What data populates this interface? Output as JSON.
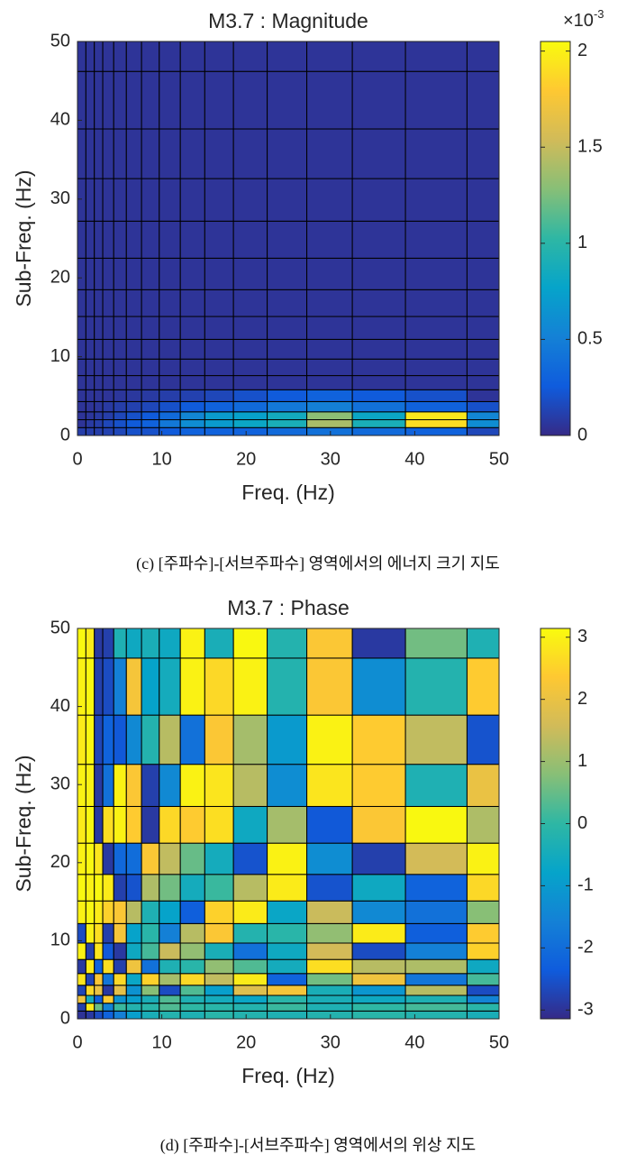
{
  "chart_data": [
    {
      "type": "heatmap",
      "title": "M3.7 : Magnitude",
      "xlabel": "Freq. (Hz)",
      "ylabel": "Sub-Freq. (Hz)",
      "caption": "(c) [주파수]-[서브주파수] 영역에서의 에너지 크기 지도",
      "xlim": [
        0,
        50
      ],
      "ylim": [
        0,
        50
      ],
      "xticks": [
        0,
        10,
        20,
        30,
        40,
        50
      ],
      "yticks": [
        0,
        10,
        20,
        30,
        40,
        50
      ],
      "xbins": [
        0,
        1,
        2,
        3,
        4.3,
        5.8,
        7.6,
        9.7,
        12.2,
        15.1,
        18.5,
        22.5,
        27.2,
        32.6,
        38.9,
        46.2,
        50
      ],
      "ybins": [
        0,
        1,
        2,
        3,
        4.3,
        5.8,
        7.6,
        9.7,
        12.2,
        15.1,
        18.5,
        22.5,
        27.2,
        32.6,
        38.9,
        46.2,
        50
      ],
      "clim": [
        0,
        2.05
      ],
      "cticks": [
        0,
        0.5,
        1,
        1.5,
        2
      ],
      "colorbar_multiplier": {
        "base": "×10",
        "exponent": "-3"
      },
      "colormap": [
        "#352a87",
        "#0f5cdd",
        "#1481d6",
        "#06a4ca",
        "#2eb7a4",
        "#87bf77",
        "#d1bb59",
        "#fec832",
        "#f9fb0e"
      ],
      "values": [
        [
          0.1,
          0.1,
          0.1,
          0.12,
          0.15,
          0.2,
          0.2,
          0.25,
          0.3,
          0.3,
          0.3,
          0.35,
          0.4,
          0.35,
          0.3,
          0.15
        ],
        [
          0.05,
          0.08,
          0.1,
          0.15,
          0.2,
          0.25,
          0.3,
          0.45,
          0.6,
          0.7,
          0.8,
          0.9,
          1.4,
          0.9,
          1.9,
          0.6
        ],
        [
          0.05,
          0.06,
          0.08,
          0.1,
          0.15,
          0.2,
          0.25,
          0.35,
          0.55,
          0.7,
          0.75,
          0.85,
          1.3,
          0.8,
          1.95,
          0.55
        ],
        [
          0.05,
          0.05,
          0.06,
          0.08,
          0.1,
          0.12,
          0.15,
          0.2,
          0.25,
          0.3,
          0.35,
          0.45,
          0.5,
          0.4,
          0.3,
          0.2
        ],
        [
          0.05,
          0.05,
          0.05,
          0.05,
          0.06,
          0.07,
          0.08,
          0.1,
          0.12,
          0.15,
          0.2,
          0.25,
          0.3,
          0.25,
          0.2,
          0.05
        ],
        [
          0.05,
          0.05,
          0.05,
          0.05,
          0.05,
          0.05,
          0.05,
          0.05,
          0.05,
          0.05,
          0.05,
          0.05,
          0.05,
          0.05,
          0.05,
          0.05
        ],
        [
          0.05,
          0.05,
          0.05,
          0.05,
          0.05,
          0.05,
          0.05,
          0.05,
          0.05,
          0.05,
          0.05,
          0.05,
          0.05,
          0.05,
          0.05,
          0.05
        ],
        [
          0.05,
          0.05,
          0.05,
          0.05,
          0.05,
          0.05,
          0.05,
          0.05,
          0.05,
          0.05,
          0.05,
          0.05,
          0.05,
          0.05,
          0.05,
          0.05
        ],
        [
          0.05,
          0.05,
          0.05,
          0.05,
          0.05,
          0.05,
          0.05,
          0.05,
          0.05,
          0.05,
          0.05,
          0.05,
          0.05,
          0.05,
          0.05,
          0.05
        ],
        [
          0.05,
          0.05,
          0.05,
          0.05,
          0.05,
          0.05,
          0.05,
          0.05,
          0.05,
          0.05,
          0.05,
          0.05,
          0.05,
          0.05,
          0.05,
          0.05
        ],
        [
          0.05,
          0.05,
          0.05,
          0.05,
          0.05,
          0.05,
          0.05,
          0.05,
          0.05,
          0.05,
          0.05,
          0.05,
          0.05,
          0.05,
          0.05,
          0.05
        ],
        [
          0.05,
          0.05,
          0.05,
          0.05,
          0.05,
          0.05,
          0.05,
          0.05,
          0.05,
          0.05,
          0.05,
          0.05,
          0.05,
          0.05,
          0.05,
          0.05
        ],
        [
          0.05,
          0.05,
          0.05,
          0.05,
          0.05,
          0.05,
          0.05,
          0.05,
          0.05,
          0.05,
          0.05,
          0.05,
          0.05,
          0.05,
          0.05,
          0.05
        ],
        [
          0.05,
          0.05,
          0.05,
          0.05,
          0.05,
          0.05,
          0.05,
          0.05,
          0.05,
          0.05,
          0.05,
          0.05,
          0.05,
          0.05,
          0.05,
          0.05
        ],
        [
          0.05,
          0.05,
          0.05,
          0.05,
          0.05,
          0.05,
          0.05,
          0.05,
          0.05,
          0.05,
          0.05,
          0.05,
          0.05,
          0.05,
          0.05,
          0.05
        ],
        [
          0.05,
          0.05,
          0.05,
          0.05,
          0.05,
          0.05,
          0.05,
          0.05,
          0.05,
          0.05,
          0.05,
          0.05,
          0.05,
          0.05,
          0.05,
          0.05
        ]
      ]
    },
    {
      "type": "heatmap",
      "title": "M3.7 : Phase",
      "xlabel": "Freq. (Hz)",
      "ylabel": "Sub-Freq. (Hz)",
      "caption": "(d) [주파수]-[서브주파수] 영역에서의 위상 지도",
      "xlim": [
        0,
        50
      ],
      "ylim": [
        0,
        50
      ],
      "xticks": [
        0,
        10,
        20,
        30,
        40,
        50
      ],
      "yticks": [
        0,
        10,
        20,
        30,
        40,
        50
      ],
      "xbins": [
        0,
        1,
        2,
        3,
        4.3,
        5.8,
        7.6,
        9.7,
        12.2,
        15.1,
        18.5,
        22.5,
        27.2,
        32.6,
        38.9,
        46.2,
        50
      ],
      "ybins": [
        0,
        1,
        2,
        3,
        4.3,
        5.8,
        7.6,
        9.7,
        12.2,
        15.1,
        18.5,
        22.5,
        27.2,
        32.6,
        38.9,
        46.2,
        50
      ],
      "clim": [
        -3.1416,
        3.1416
      ],
      "cticks": [
        -3,
        -2,
        -1,
        0,
        1,
        2,
        3
      ],
      "colormap": [
        "#352a87",
        "#0f5cdd",
        "#1481d6",
        "#06a4ca",
        "#2eb7a4",
        "#87bf77",
        "#d1bb59",
        "#fec832",
        "#f9fb0e"
      ],
      "values": [
        [
          -3.0,
          -2.9,
          -2.6,
          -2.2,
          -1.6,
          -0.9,
          -0.4,
          -0.2,
          -0.3,
          -0.1,
          -0.2,
          -0.3,
          -0.2,
          -0.1,
          -0.2,
          -0.4
        ],
        [
          -2.8,
          2.9,
          0.5,
          -1.5,
          0.1,
          -0.2,
          -0.1,
          0.3,
          0.0,
          -0.1,
          -0.2,
          0.1,
          -0.3,
          0.0,
          0.2,
          -0.1
        ],
        [
          2.1,
          -0.5,
          -2.3,
          2.4,
          -1.2,
          -0.9,
          -0.4,
          0.3,
          -0.3,
          -0.5,
          -0.7,
          -0.1,
          -0.4,
          -0.6,
          -0.3,
          -1.5
        ],
        [
          -2.7,
          2.6,
          2.0,
          -2.9,
          1.9,
          -1.2,
          0.8,
          -2.6,
          0.3,
          -0.9,
          1.8,
          2.2,
          -0.4,
          -1.1,
          1.3,
          -2.6
        ],
        [
          2.8,
          -2.7,
          2.3,
          -1.8,
          2.6,
          -0.7,
          2.5,
          1.1,
          2.6,
          1.4,
          2.9,
          -2.2,
          0.6,
          2.1,
          -1.8,
          0.2
        ],
        [
          -2.9,
          2.9,
          -2.2,
          2.7,
          -2.8,
          2.1,
          -1.9,
          -0.3,
          -0.1,
          0.9,
          0.3,
          -0.5,
          2.7,
          1.3,
          1.2,
          -0.6
        ],
        [
          3.0,
          -2.8,
          2.8,
          -2.4,
          -2.9,
          -0.6,
          0.2,
          1.5,
          0.9,
          -0.4,
          -1.9,
          -0.6,
          1.6,
          -2.6,
          -1.6,
          2.5
        ],
        [
          -2.6,
          3.0,
          2.7,
          -2.8,
          2.2,
          -0.8,
          -0.1,
          -1.6,
          1.3,
          2.3,
          -0.2,
          -0.1,
          0.9,
          2.9,
          -2.3,
          2.4
        ],
        [
          3.0,
          3.1,
          2.9,
          2.5,
          2.3,
          1.3,
          -0.3,
          -0.8,
          -2.3,
          2.5,
          2.9,
          -0.7,
          1.5,
          -1.4,
          -1.9,
          0.8
        ],
        [
          3.1,
          3.0,
          3.1,
          2.9,
          -2.8,
          -2.5,
          1.2,
          0.6,
          -0.5,
          0.1,
          1.3,
          2.9,
          -2.5,
          -0.6,
          -2.2,
          2.6
        ],
        [
          3.0,
          3.1,
          2.8,
          -2.9,
          -2.1,
          -2.0,
          2.3,
          1.4,
          0.5,
          -0.5,
          -2.5,
          3.0,
          -1.3,
          -2.8,
          1.6,
          3.0
        ],
        [
          2.9,
          3.1,
          -2.9,
          2.7,
          3.0,
          2.4,
          -2.9,
          2.6,
          2.4,
          2.7,
          -0.6,
          1.1,
          -2.4,
          2.3,
          3.1,
          1.2
        ],
        [
          3.0,
          3.0,
          -2.9,
          -1.9,
          3.0,
          2.3,
          -2.8,
          -1.4,
          3.0,
          2.8,
          1.3,
          -1.3,
          2.8,
          2.4,
          -0.3,
          2.0
        ],
        [
          2.9,
          3.1,
          -2.7,
          -2.2,
          -2.4,
          -1.4,
          -0.2,
          1.3,
          -1.9,
          2.3,
          1.1,
          -1.0,
          3.0,
          2.4,
          1.4,
          -2.5
        ],
        [
          3.0,
          3.1,
          -2.8,
          -2.6,
          -1.6,
          2.2,
          -0.8,
          -0.5,
          3.0,
          2.6,
          3.0,
          -0.2,
          2.3,
          -1.3,
          -0.2,
          2.4
        ],
        [
          3.1,
          2.9,
          -2.9,
          -2.8,
          -0.3,
          -0.6,
          -0.4,
          -0.6,
          3.0,
          -0.4,
          3.1,
          -0.2,
          2.3,
          -2.9,
          0.6,
          -0.3
        ]
      ]
    }
  ]
}
